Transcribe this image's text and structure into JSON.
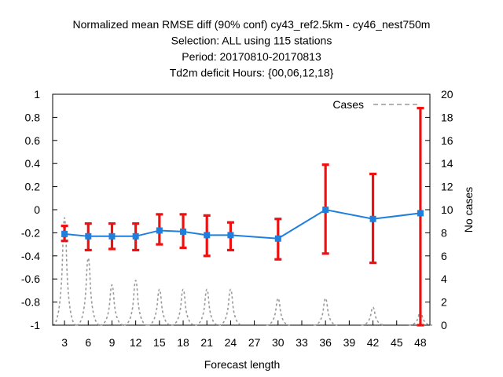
{
  "chart_data": {
    "type": "line",
    "title_lines": [
      "Normalized mean RMSE diff (90% conf) cy43_ref2.5km - cy46_nest750m",
      "Selection: ALL using   115 stations",
      "Period: 20170810-20170813",
      "Td2m deficit   Hours: {00,06,12,18}"
    ],
    "xlabel": "Forecast length",
    "ylabel_right": "No cases",
    "x_ticks": [
      3,
      6,
      9,
      12,
      15,
      18,
      21,
      24,
      27,
      30,
      33,
      36,
      39,
      42,
      45,
      48
    ],
    "x_range": [
      1.5,
      49.2
    ],
    "y_range": [
      -1,
      1
    ],
    "y_ticks": [
      -1,
      -0.8,
      -0.6,
      -0.4,
      -0.2,
      0,
      0.2,
      0.4,
      0.6,
      0.8,
      1
    ],
    "y_tick_labels": [
      "-1",
      "-0.8",
      "-0.6",
      "-0.4",
      "-0.2",
      "0",
      "0.2",
      "0.4",
      "0.6",
      "0.8",
      "1"
    ],
    "y2_range": [
      0,
      20
    ],
    "y2_ticks": [
      0,
      2,
      4,
      6,
      8,
      10,
      12,
      14,
      16,
      18,
      20
    ],
    "series": [
      {
        "kind": "mean-with-errorbars",
        "color": "#1f7fdc",
        "errorbar_color": "#ee1111",
        "points": [
          {
            "x": 3,
            "y": -0.21,
            "lo": -0.27,
            "hi": -0.14
          },
          {
            "x": 6,
            "y": -0.23,
            "lo": -0.35,
            "hi": -0.12
          },
          {
            "x": 9,
            "y": -0.23,
            "lo": -0.34,
            "hi": -0.12
          },
          {
            "x": 12,
            "y": -0.23,
            "lo": -0.35,
            "hi": -0.12
          },
          {
            "x": 15,
            "y": -0.18,
            "lo": -0.3,
            "hi": -0.04
          },
          {
            "x": 18,
            "y": -0.19,
            "lo": -0.33,
            "hi": -0.04
          },
          {
            "x": 21,
            "y": -0.22,
            "lo": -0.4,
            "hi": -0.05
          },
          {
            "x": 24,
            "y": -0.22,
            "lo": -0.35,
            "hi": -0.11
          },
          {
            "x": 30,
            "y": -0.25,
            "lo": -0.43,
            "hi": -0.08
          },
          {
            "x": 36,
            "y": 0.0,
            "lo": -0.38,
            "hi": 0.39
          },
          {
            "x": 42,
            "y": -0.08,
            "lo": -0.46,
            "hi": 0.31
          },
          {
            "x": 48,
            "y": -0.03,
            "lo": -1.0,
            "hi": 0.88
          }
        ]
      },
      {
        "kind": "cases",
        "name": "Cases",
        "axis": "y2",
        "color": "#999999",
        "points": [
          {
            "x": 3,
            "y": 12
          },
          {
            "x": 6,
            "y": 7.5
          },
          {
            "x": 9,
            "y": 4.5
          },
          {
            "x": 12,
            "y": 5
          },
          {
            "x": 15,
            "y": 4
          },
          {
            "x": 18,
            "y": 4
          },
          {
            "x": 21,
            "y": 4
          },
          {
            "x": 24,
            "y": 4
          },
          {
            "x": 30,
            "y": 3
          },
          {
            "x": 36,
            "y": 3
          },
          {
            "x": 42,
            "y": 2
          },
          {
            "x": 48,
            "y": 1.5
          }
        ]
      }
    ],
    "legend": {
      "position": "top-right",
      "entries": [
        "Cases"
      ]
    },
    "grid": false
  }
}
